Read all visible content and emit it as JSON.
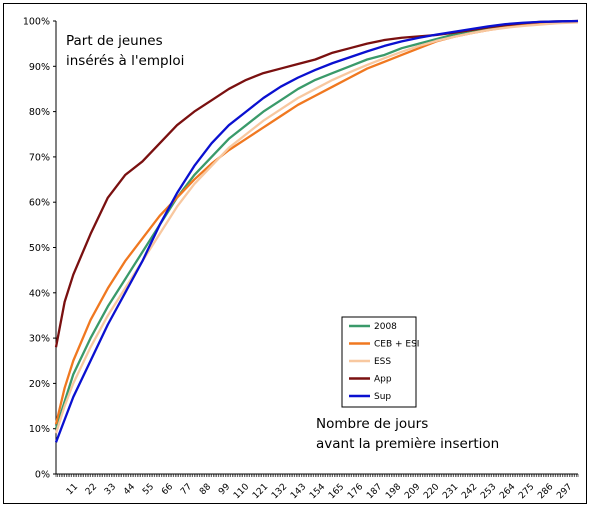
{
  "chart_data": {
    "type": "line",
    "title": "",
    "xlabel": "",
    "ylabel": "",
    "xlim": [
      0,
      302
    ],
    "ylim": [
      0,
      100
    ],
    "yticks": [
      0,
      10,
      20,
      30,
      40,
      50,
      60,
      70,
      80,
      90,
      100
    ],
    "ytick_labels": [
      "0%",
      "10%",
      "20%",
      "30%",
      "40%",
      "50%",
      "60%",
      "70%",
      "80%",
      "90%",
      "100%"
    ],
    "xtick_labels": [
      "11",
      "22",
      "33",
      "44",
      "55",
      "66",
      "77",
      "88",
      "99",
      "110",
      "121",
      "132",
      "143",
      "154",
      "165",
      "176",
      "187",
      "198",
      "209",
      "220",
      "231",
      "242",
      "253",
      "264",
      "275",
      "286",
      "297"
    ],
    "annotation_top": [
      "Part de jeunes",
      "insérés à l'emploi"
    ],
    "annotation_bottom": [
      "Nombre de jours",
      "avant la première insertion"
    ],
    "grid": false,
    "legend_position": "center-right",
    "series": [
      {
        "name": "2008",
        "color": "#3a9a6a",
        "x": [
          0,
          5,
          10,
          20,
          30,
          40,
          50,
          60,
          70,
          80,
          90,
          100,
          110,
          120,
          130,
          140,
          150,
          160,
          170,
          180,
          190,
          200,
          210,
          220,
          230,
          240,
          250,
          260,
          270,
          280,
          290,
          302
        ],
        "y": [
          10,
          16,
          22,
          30,
          37,
          43,
          49,
          55,
          61,
          66,
          70,
          74,
          77,
          80,
          82.5,
          85,
          87,
          88.5,
          90,
          91.5,
          92.5,
          94,
          95,
          96,
          97,
          97.8,
          98.4,
          98.9,
          99.3,
          99.6,
          99.8,
          100
        ]
      },
      {
        "name": "CEB + ESI",
        "color": "#f07820",
        "x": [
          0,
          5,
          10,
          20,
          30,
          40,
          50,
          60,
          70,
          80,
          90,
          100,
          110,
          120,
          130,
          140,
          150,
          160,
          170,
          180,
          190,
          200,
          210,
          220,
          230,
          240,
          250,
          260,
          270,
          280,
          290,
          302
        ],
        "y": [
          11,
          19,
          25,
          34,
          41,
          47,
          52,
          57,
          61,
          65,
          68.5,
          71.5,
          74,
          76.5,
          79,
          81.5,
          83.5,
          85.5,
          87.5,
          89.5,
          91,
          92.5,
          94,
          95.5,
          96.5,
          97.3,
          98,
          98.6,
          99,
          99.4,
          99.7,
          100
        ]
      },
      {
        "name": "ESS",
        "color": "#f8c8a0",
        "x": [
          0,
          5,
          10,
          20,
          30,
          40,
          50,
          60,
          70,
          80,
          90,
          100,
          110,
          120,
          130,
          140,
          150,
          160,
          170,
          180,
          190,
          200,
          210,
          220,
          230,
          240,
          250,
          260,
          270,
          280,
          290,
          302
        ],
        "y": [
          9,
          15,
          20,
          28,
          35,
          41,
          47,
          53,
          59,
          64,
          68,
          72,
          75,
          78,
          80.5,
          83,
          85,
          87,
          88.7,
          90.3,
          91.8,
          93.2,
          94.5,
          95.6,
          96.5,
          97.3,
          98,
          98.5,
          98.9,
          99.2,
          99.5,
          99.7
        ]
      },
      {
        "name": "App",
        "color": "#7a1010",
        "x": [
          0,
          5,
          10,
          20,
          30,
          40,
          50,
          60,
          70,
          80,
          90,
          100,
          110,
          120,
          130,
          140,
          150,
          160,
          170,
          180,
          190,
          200,
          210,
          220,
          230,
          240,
          250,
          260,
          270,
          280,
          290,
          302
        ],
        "y": [
          28,
          38,
          44,
          53,
          61,
          66,
          69,
          73,
          77,
          80,
          82.5,
          85,
          87,
          88.5,
          89.5,
          90.5,
          91.5,
          93,
          94,
          95,
          95.8,
          96.3,
          96.6,
          96.9,
          97.4,
          98,
          98.6,
          99.1,
          99.5,
          99.8,
          99.9,
          100
        ]
      },
      {
        "name": "Sup",
        "color": "#0a10d0",
        "x": [
          0,
          5,
          10,
          20,
          30,
          40,
          50,
          60,
          70,
          80,
          90,
          100,
          110,
          120,
          130,
          140,
          150,
          160,
          170,
          180,
          190,
          200,
          210,
          220,
          230,
          240,
          250,
          260,
          270,
          280,
          290,
          302
        ],
        "y": [
          7,
          12,
          17,
          25,
          33,
          40,
          47,
          55,
          62,
          68,
          73,
          77,
          80,
          83,
          85.5,
          87.5,
          89.2,
          90.7,
          92,
          93.3,
          94.5,
          95.5,
          96.3,
          97,
          97.6,
          98.2,
          98.8,
          99.3,
          99.6,
          99.8,
          99.9,
          100
        ]
      }
    ]
  }
}
